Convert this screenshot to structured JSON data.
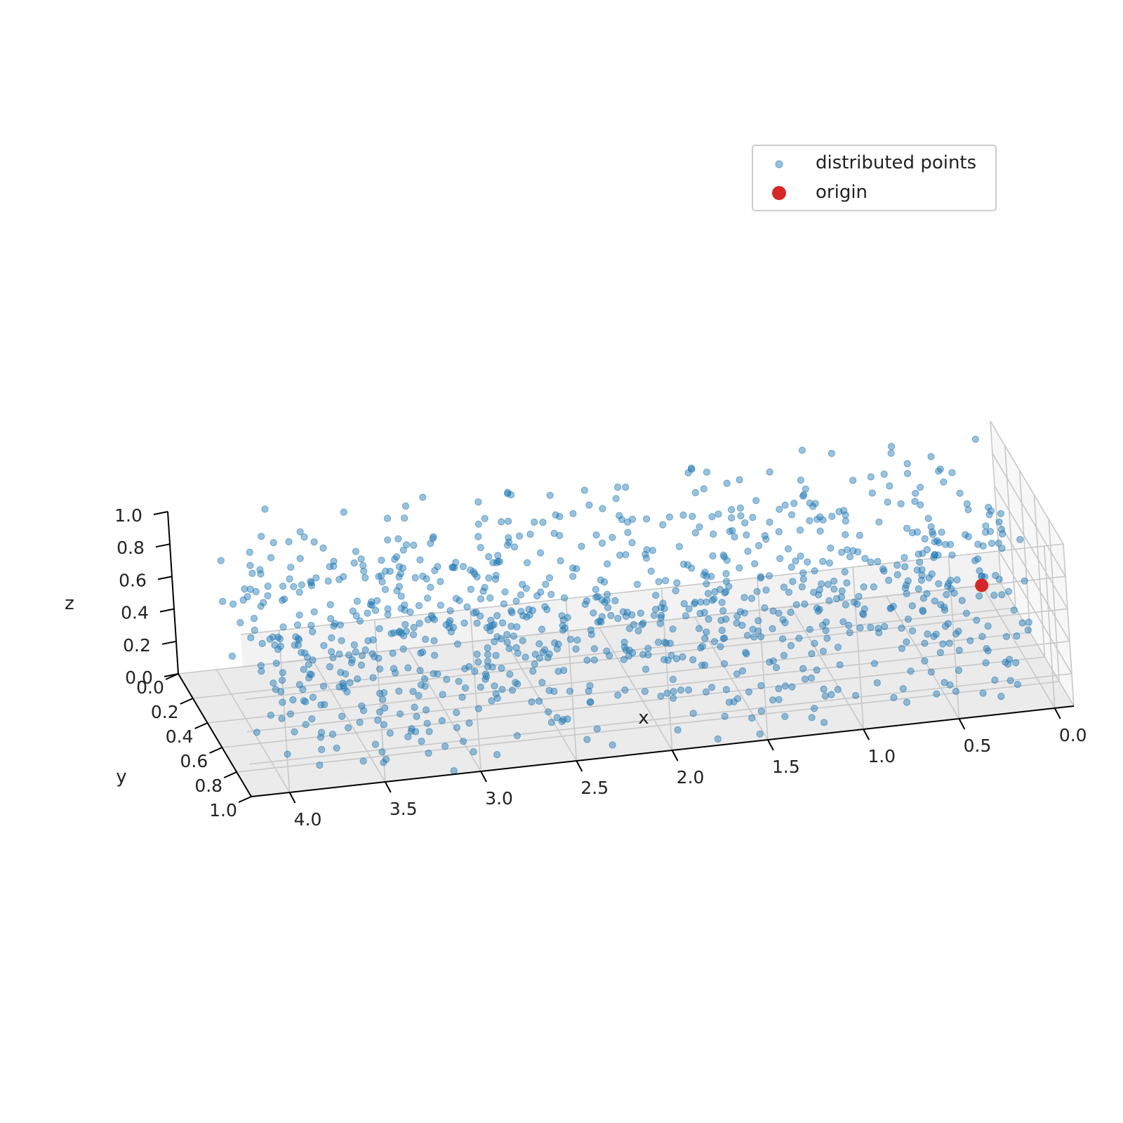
{
  "chart_data": {
    "type": "scatter",
    "projection": "3d",
    "title": "",
    "xlabel": "x",
    "ylabel": "y",
    "zlabel": "z",
    "xlim": [
      -0.1,
      4.2
    ],
    "ylim": [
      0,
      1
    ],
    "zlim": [
      0,
      1
    ],
    "x_ticks": [
      "0.0",
      "0.5",
      "1.0",
      "1.5",
      "2.0",
      "2.5",
      "3.0",
      "3.5",
      "4.0"
    ],
    "x_tick_values": [
      0,
      0.5,
      1,
      1.5,
      2,
      2.5,
      3,
      3.5,
      4
    ],
    "y_ticks": [
      "0.0",
      "0.2",
      "0.4",
      "0.6",
      "0.8",
      "1.0"
    ],
    "y_tick_values": [
      0,
      0.2,
      0.4,
      0.6,
      0.8,
      1.0
    ],
    "z_ticks": [
      "0.0",
      "0.2",
      "0.4",
      "0.6",
      "0.8",
      "1.0"
    ],
    "z_tick_values": [
      0,
      0.2,
      0.4,
      0.6,
      0.8,
      1.0
    ],
    "grid": true,
    "legend_position": "top-right",
    "series": [
      {
        "name": "distributed points",
        "color": "#1f77b4",
        "alpha": 0.45,
        "count": 1000,
        "distribution": "uniform in x∈[0,4], y∈[0,1], z∈[0,1]"
      },
      {
        "name": "origin",
        "color": "#d62728",
        "points": [
          [
            0,
            0,
            0
          ]
        ]
      }
    ]
  },
  "legend": {
    "items": [
      "distributed points",
      "origin"
    ]
  }
}
